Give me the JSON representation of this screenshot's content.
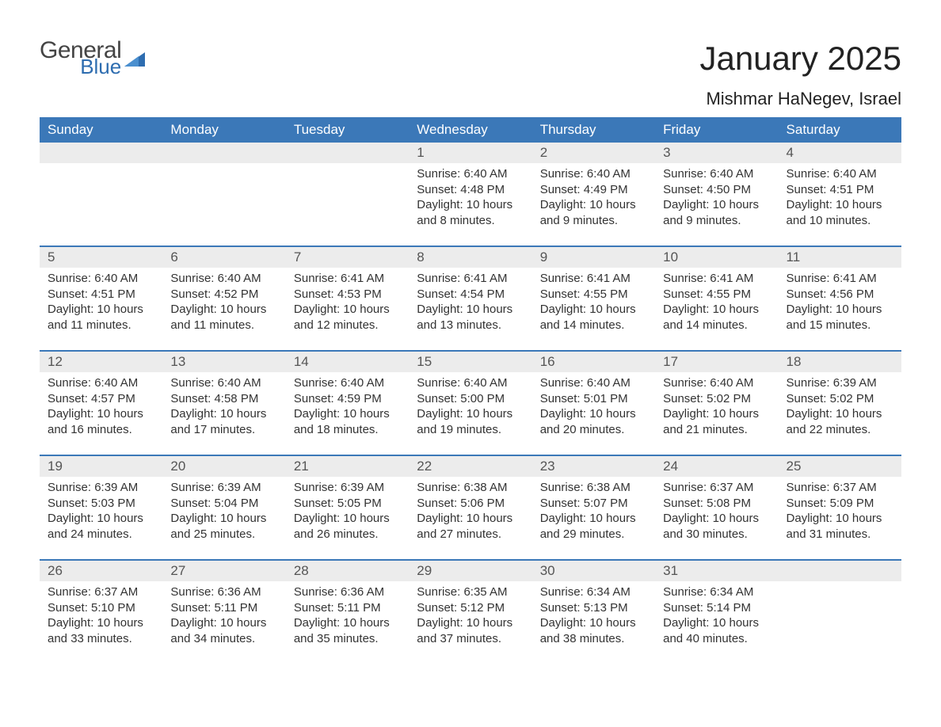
{
  "brand": {
    "general": "General",
    "blue": "Blue"
  },
  "title": "January 2025",
  "location": "Mishmar HaNegev, Israel",
  "colors": {
    "header_bg": "#3b78b8",
    "header_text": "#ffffff",
    "daynum_bg": "#ececec",
    "row_divider": "#3b78b8",
    "logo_blue": "#2e6db0",
    "body_text": "#333333"
  },
  "layout": {
    "columns": 7,
    "rows": 5,
    "week_start": "Sunday"
  },
  "weekdays": [
    "Sunday",
    "Monday",
    "Tuesday",
    "Wednesday",
    "Thursday",
    "Friday",
    "Saturday"
  ],
  "weeks": [
    [
      null,
      null,
      null,
      {
        "day": "1",
        "sunrise": "Sunrise: 6:40 AM",
        "sunset": "Sunset: 4:48 PM",
        "dl1": "Daylight: 10 hours",
        "dl2": "and 8 minutes."
      },
      {
        "day": "2",
        "sunrise": "Sunrise: 6:40 AM",
        "sunset": "Sunset: 4:49 PM",
        "dl1": "Daylight: 10 hours",
        "dl2": "and 9 minutes."
      },
      {
        "day": "3",
        "sunrise": "Sunrise: 6:40 AM",
        "sunset": "Sunset: 4:50 PM",
        "dl1": "Daylight: 10 hours",
        "dl2": "and 9 minutes."
      },
      {
        "day": "4",
        "sunrise": "Sunrise: 6:40 AM",
        "sunset": "Sunset: 4:51 PM",
        "dl1": "Daylight: 10 hours",
        "dl2": "and 10 minutes."
      }
    ],
    [
      {
        "day": "5",
        "sunrise": "Sunrise: 6:40 AM",
        "sunset": "Sunset: 4:51 PM",
        "dl1": "Daylight: 10 hours",
        "dl2": "and 11 minutes."
      },
      {
        "day": "6",
        "sunrise": "Sunrise: 6:40 AM",
        "sunset": "Sunset: 4:52 PM",
        "dl1": "Daylight: 10 hours",
        "dl2": "and 11 minutes."
      },
      {
        "day": "7",
        "sunrise": "Sunrise: 6:41 AM",
        "sunset": "Sunset: 4:53 PM",
        "dl1": "Daylight: 10 hours",
        "dl2": "and 12 minutes."
      },
      {
        "day": "8",
        "sunrise": "Sunrise: 6:41 AM",
        "sunset": "Sunset: 4:54 PM",
        "dl1": "Daylight: 10 hours",
        "dl2": "and 13 minutes."
      },
      {
        "day": "9",
        "sunrise": "Sunrise: 6:41 AM",
        "sunset": "Sunset: 4:55 PM",
        "dl1": "Daylight: 10 hours",
        "dl2": "and 14 minutes."
      },
      {
        "day": "10",
        "sunrise": "Sunrise: 6:41 AM",
        "sunset": "Sunset: 4:55 PM",
        "dl1": "Daylight: 10 hours",
        "dl2": "and 14 minutes."
      },
      {
        "day": "11",
        "sunrise": "Sunrise: 6:41 AM",
        "sunset": "Sunset: 4:56 PM",
        "dl1": "Daylight: 10 hours",
        "dl2": "and 15 minutes."
      }
    ],
    [
      {
        "day": "12",
        "sunrise": "Sunrise: 6:40 AM",
        "sunset": "Sunset: 4:57 PM",
        "dl1": "Daylight: 10 hours",
        "dl2": "and 16 minutes."
      },
      {
        "day": "13",
        "sunrise": "Sunrise: 6:40 AM",
        "sunset": "Sunset: 4:58 PM",
        "dl1": "Daylight: 10 hours",
        "dl2": "and 17 minutes."
      },
      {
        "day": "14",
        "sunrise": "Sunrise: 6:40 AM",
        "sunset": "Sunset: 4:59 PM",
        "dl1": "Daylight: 10 hours",
        "dl2": "and 18 minutes."
      },
      {
        "day": "15",
        "sunrise": "Sunrise: 6:40 AM",
        "sunset": "Sunset: 5:00 PM",
        "dl1": "Daylight: 10 hours",
        "dl2": "and 19 minutes."
      },
      {
        "day": "16",
        "sunrise": "Sunrise: 6:40 AM",
        "sunset": "Sunset: 5:01 PM",
        "dl1": "Daylight: 10 hours",
        "dl2": "and 20 minutes."
      },
      {
        "day": "17",
        "sunrise": "Sunrise: 6:40 AM",
        "sunset": "Sunset: 5:02 PM",
        "dl1": "Daylight: 10 hours",
        "dl2": "and 21 minutes."
      },
      {
        "day": "18",
        "sunrise": "Sunrise: 6:39 AM",
        "sunset": "Sunset: 5:02 PM",
        "dl1": "Daylight: 10 hours",
        "dl2": "and 22 minutes."
      }
    ],
    [
      {
        "day": "19",
        "sunrise": "Sunrise: 6:39 AM",
        "sunset": "Sunset: 5:03 PM",
        "dl1": "Daylight: 10 hours",
        "dl2": "and 24 minutes."
      },
      {
        "day": "20",
        "sunrise": "Sunrise: 6:39 AM",
        "sunset": "Sunset: 5:04 PM",
        "dl1": "Daylight: 10 hours",
        "dl2": "and 25 minutes."
      },
      {
        "day": "21",
        "sunrise": "Sunrise: 6:39 AM",
        "sunset": "Sunset: 5:05 PM",
        "dl1": "Daylight: 10 hours",
        "dl2": "and 26 minutes."
      },
      {
        "day": "22",
        "sunrise": "Sunrise: 6:38 AM",
        "sunset": "Sunset: 5:06 PM",
        "dl1": "Daylight: 10 hours",
        "dl2": "and 27 minutes."
      },
      {
        "day": "23",
        "sunrise": "Sunrise: 6:38 AM",
        "sunset": "Sunset: 5:07 PM",
        "dl1": "Daylight: 10 hours",
        "dl2": "and 29 minutes."
      },
      {
        "day": "24",
        "sunrise": "Sunrise: 6:37 AM",
        "sunset": "Sunset: 5:08 PM",
        "dl1": "Daylight: 10 hours",
        "dl2": "and 30 minutes."
      },
      {
        "day": "25",
        "sunrise": "Sunrise: 6:37 AM",
        "sunset": "Sunset: 5:09 PM",
        "dl1": "Daylight: 10 hours",
        "dl2": "and 31 minutes."
      }
    ],
    [
      {
        "day": "26",
        "sunrise": "Sunrise: 6:37 AM",
        "sunset": "Sunset: 5:10 PM",
        "dl1": "Daylight: 10 hours",
        "dl2": "and 33 minutes."
      },
      {
        "day": "27",
        "sunrise": "Sunrise: 6:36 AM",
        "sunset": "Sunset: 5:11 PM",
        "dl1": "Daylight: 10 hours",
        "dl2": "and 34 minutes."
      },
      {
        "day": "28",
        "sunrise": "Sunrise: 6:36 AM",
        "sunset": "Sunset: 5:11 PM",
        "dl1": "Daylight: 10 hours",
        "dl2": "and 35 minutes."
      },
      {
        "day": "29",
        "sunrise": "Sunrise: 6:35 AM",
        "sunset": "Sunset: 5:12 PM",
        "dl1": "Daylight: 10 hours",
        "dl2": "and 37 minutes."
      },
      {
        "day": "30",
        "sunrise": "Sunrise: 6:34 AM",
        "sunset": "Sunset: 5:13 PM",
        "dl1": "Daylight: 10 hours",
        "dl2": "and 38 minutes."
      },
      {
        "day": "31",
        "sunrise": "Sunrise: 6:34 AM",
        "sunset": "Sunset: 5:14 PM",
        "dl1": "Daylight: 10 hours",
        "dl2": "and 40 minutes."
      },
      null
    ]
  ]
}
